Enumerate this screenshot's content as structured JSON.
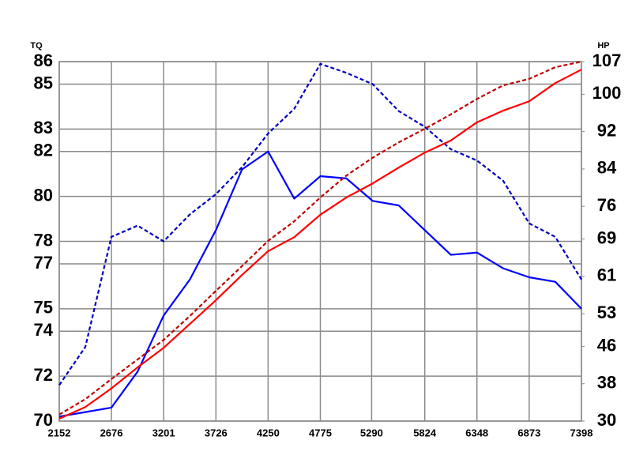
{
  "chart_data": {
    "type": "line",
    "y_label": "TQ",
    "y2_label": "HP",
    "x": [
      2152,
      2414,
      2676,
      2939,
      3201,
      3464,
      3726,
      3988,
      4250,
      4513,
      4775,
      5037,
      5300,
      5562,
      5824,
      6086,
      6348,
      6611,
      6873,
      7135,
      7398
    ],
    "series": [
      {
        "color": "#0000ff",
        "dashed": false,
        "values": [
          70.2,
          70.4,
          70.6,
          72.2,
          74.7,
          76.3,
          78.5,
          81.2,
          82.0,
          79.9,
          80.9,
          80.8,
          79.8,
          79.6,
          78.5,
          77.4,
          77.5,
          76.8,
          76.4,
          76.2,
          75.0
        ]
      },
      {
        "color": "#0000c0",
        "dashed": true,
        "values": [
          71.6,
          73.3,
          78.2,
          78.7,
          78.0,
          79.2,
          80.1,
          81.3,
          82.8,
          83.9,
          85.9,
          85.5,
          85.0,
          83.8,
          83.1,
          82.1,
          81.6,
          80.7,
          78.8,
          78.2,
          76.3
        ]
      },
      {
        "color": "#ff0000",
        "dashed": false,
        "axis": "y2",
        "values": [
          30.5,
          33.0,
          37.0,
          41.5,
          45.7,
          50.8,
          55.9,
          61.3,
          66.4,
          69.4,
          74.2,
          77.9,
          80.9,
          84.3,
          87.5,
          90.1,
          94.0,
          96.5,
          98.5,
          102.4,
          105.3
        ]
      },
      {
        "color": "#c00000",
        "dashed": true,
        "axis": "y2",
        "values": [
          31.4,
          34.7,
          39.0,
          43.2,
          47.4,
          52.5,
          57.9,
          63.2,
          68.6,
          72.8,
          77.9,
          82.6,
          86.4,
          89.7,
          92.6,
          95.7,
          99.0,
          101.9,
          103.3,
          105.8,
          107.0
        ]
      }
    ],
    "xlim": [
      2152,
      7398
    ],
    "xticks": [
      2152,
      2676,
      3201,
      3726,
      4250,
      4775,
      5290,
      5824,
      6348,
      6873,
      7398
    ],
    "ylim": [
      70,
      86
    ],
    "yticks": [
      70,
      72,
      74,
      75,
      77,
      78,
      80,
      82,
      83,
      85,
      86
    ],
    "y2lim": [
      30,
      107
    ],
    "y2ticks": [
      30,
      38,
      46,
      53,
      61,
      69,
      76,
      84,
      92,
      100,
      107
    ],
    "grid": true
  }
}
